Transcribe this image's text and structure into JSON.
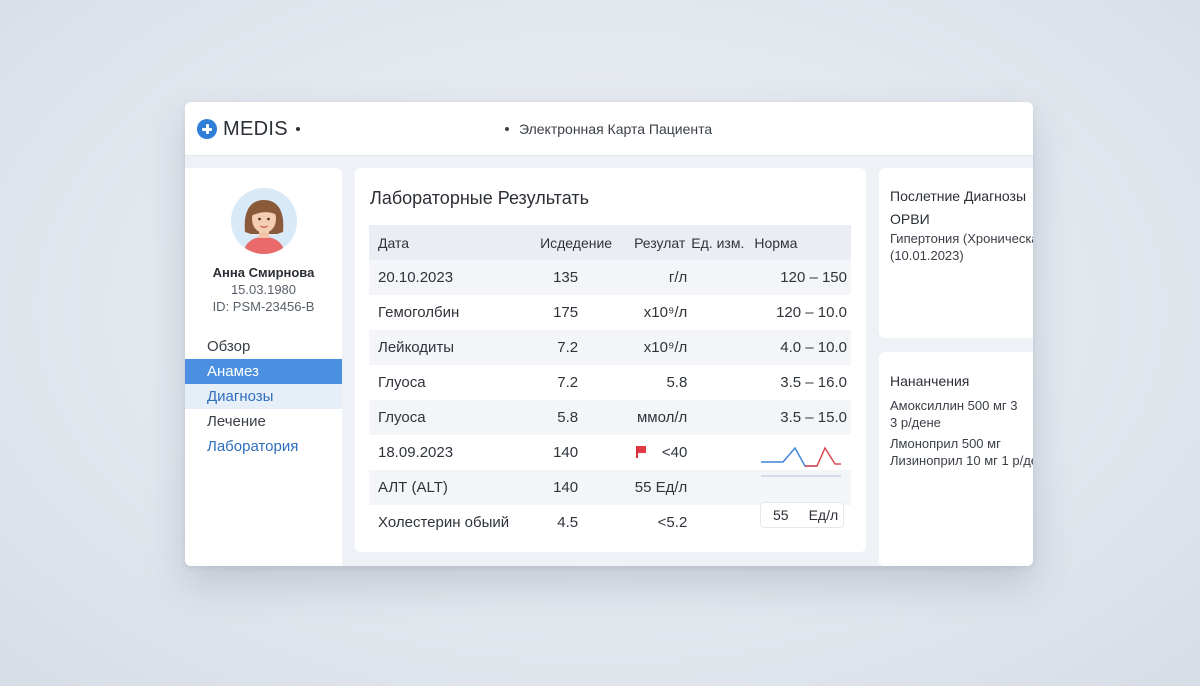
{
  "header": {
    "app_name": "MEDIS",
    "title": "Электронная Карта Пациента"
  },
  "patient": {
    "name": "Анна Смирнова",
    "dob": "15.03.1980",
    "id": "ID: PSM-23456-B"
  },
  "nav": {
    "items": [
      {
        "label": "Обзор"
      },
      {
        "label": "Анамез"
      },
      {
        "label": "Диагнозы"
      },
      {
        "label": "Лечение"
      },
      {
        "label": "Лаборатория"
      }
    ]
  },
  "lab": {
    "title": "Лабораторные Результать",
    "columns": [
      "Дата",
      "Исдедение",
      "Резулат",
      "Ед. изм.",
      "Норма"
    ],
    "rows": [
      {
        "c1": "20.10.2023",
        "c2": "135",
        "c3": "г/л",
        "c5": "120 – 150"
      },
      {
        "c1": "Гемоголбин",
        "c2": "175",
        "c3": "x10⁹/л",
        "c5": "120 – 10.0"
      },
      {
        "c1": "Лейкодиты",
        "c2": "7.2",
        "c3": "x10⁹/л",
        "c5": "4.0 – 10.0"
      },
      {
        "c1": "Глуоса",
        "c2": "7.2",
        "c3": "5.8",
        "c5": "3.5 – 16.0"
      },
      {
        "c1": "Глуоса",
        "c2": "5.8",
        "c3": "ммол/л",
        "c5": "3.5 – 15.0"
      },
      {
        "c1": "18.09.2023",
        "c2": "140",
        "c3": "<40",
        "c5": ""
      },
      {
        "c1": "АЛТ (ALT)",
        "c2": "140",
        "c3": "55 Ед/л",
        "c5": ""
      },
      {
        "c1": "Холестерин обыий",
        "c2": "4.5",
        "c3": "<5.2",
        "c5": ""
      }
    ],
    "chip": {
      "value": "55",
      "unit": "Ед/л"
    },
    "colors": {
      "flag": "#e03a44",
      "spark_blue": "#3f86d9",
      "spark_red": "#e0484f"
    }
  },
  "diagnoses": {
    "title": "Послетние Диагнозы",
    "lines": [
      "ОРВИ",
      "Гипертония (Хроническа",
      "(10.01.2023)"
    ]
  },
  "prescriptions": {
    "title": "Нананчения",
    "lines": [
      "Амоксиллин 500 мг 3",
      "3 р/дене",
      "Лмоноприл 500 мг",
      "Лизиноприл 10 мг 1 р/де"
    ]
  }
}
